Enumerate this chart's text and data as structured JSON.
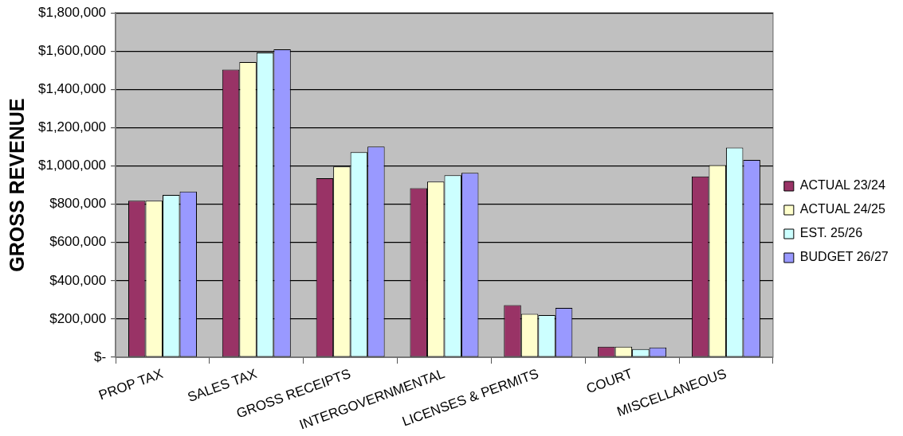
{
  "chart_data": {
    "type": "bar",
    "ylabel": "GROSS REVENUE",
    "categories": [
      "PROP TAX",
      "SALES TAX",
      "GROSS RECEIPTS",
      "INTERGOVERNMENTAL",
      "LICENSES & PERMITS",
      "COURT",
      "MISCELLANEOUS"
    ],
    "series": [
      {
        "name": "ACTUAL 23/24",
        "color": "#993366",
        "values": [
          818000,
          1504000,
          936000,
          884000,
          273000,
          55000,
          945000
        ]
      },
      {
        "name": "ACTUAL 24/25",
        "color": "#ffffcc",
        "values": [
          818000,
          1543000,
          997000,
          918000,
          227000,
          55000,
          1004000
        ]
      },
      {
        "name": "EST. 25/26",
        "color": "#ccffff",
        "values": [
          848000,
          1593000,
          1072000,
          951000,
          221000,
          43000,
          1096000
        ]
      },
      {
        "name": "BUDGET 26/27",
        "color": "#9999ff",
        "values": [
          866000,
          1610000,
          1101000,
          964000,
          258000,
          51000,
          1031000
        ]
      }
    ],
    "ylim": [
      0,
      1800000
    ],
    "yticks": [
      {
        "value": 0,
        "label": "$-"
      },
      {
        "value": 200000,
        "label": "$200,000"
      },
      {
        "value": 400000,
        "label": "$400,000"
      },
      {
        "value": 600000,
        "label": "$600,000"
      },
      {
        "value": 800000,
        "label": "$800,000"
      },
      {
        "value": 1000000,
        "label": "$1,000,000"
      },
      {
        "value": 1200000,
        "label": "$1,200,000"
      },
      {
        "value": 1400000,
        "label": "$1,400,000"
      },
      {
        "value": 1600000,
        "label": "$1,600,000"
      },
      {
        "value": 1800000,
        "label": "$1,800,000"
      }
    ],
    "grid": "y",
    "legend": "right"
  }
}
